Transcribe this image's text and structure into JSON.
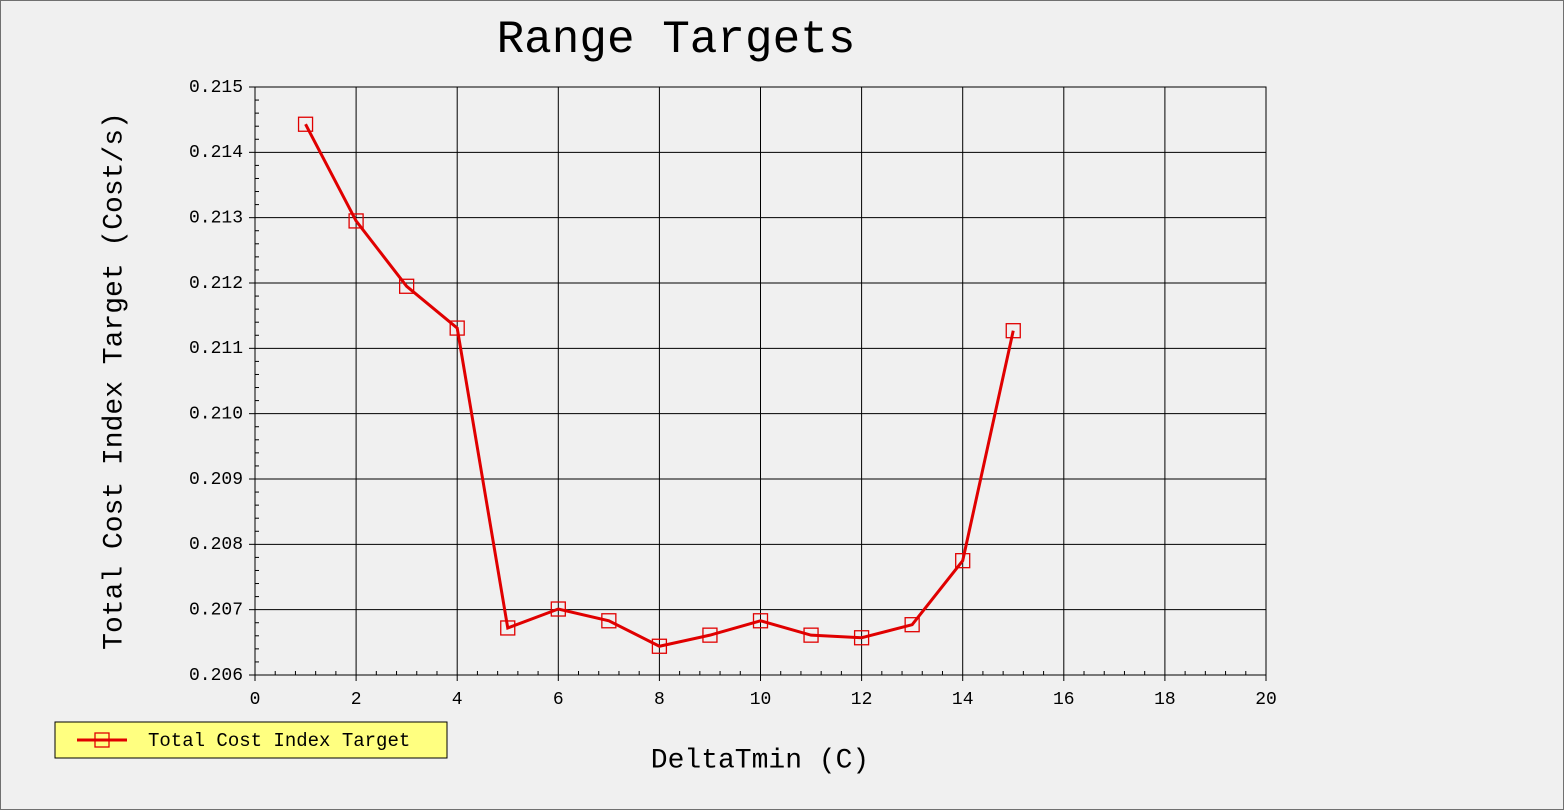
{
  "chart_data": {
    "type": "line",
    "title": "Range Targets",
    "x_label": "DeltaTmin (C)",
    "y_label": "Total Cost Index Target (Cost/s)",
    "x": [
      1,
      2,
      3,
      4,
      5,
      6,
      7,
      8,
      9,
      10,
      11,
      12,
      13,
      14,
      15
    ],
    "series": [
      {
        "name": "Total Cost Index Target",
        "color": "#e00000",
        "values": [
          0.21443,
          0.21295,
          0.21195,
          0.21131,
          0.20672,
          0.20701,
          0.20683,
          0.20644,
          0.20661,
          0.20683,
          0.20661,
          0.20657,
          0.20677,
          0.20775,
          0.21127
        ]
      }
    ],
    "xlim": [
      0,
      20
    ],
    "xticks": [
      0,
      2,
      4,
      6,
      8,
      10,
      12,
      14,
      16,
      18,
      20
    ],
    "ylim": [
      0.206,
      0.215
    ],
    "yticks": [
      0.206,
      0.207,
      0.208,
      0.209,
      {
        "value": 0.21,
        "label": "0.210"
      },
      0.211,
      0.212,
      0.213,
      0.214,
      0.215
    ],
    "grid": true,
    "legend": "bottom-left",
    "legend_color": "#ffff80"
  }
}
